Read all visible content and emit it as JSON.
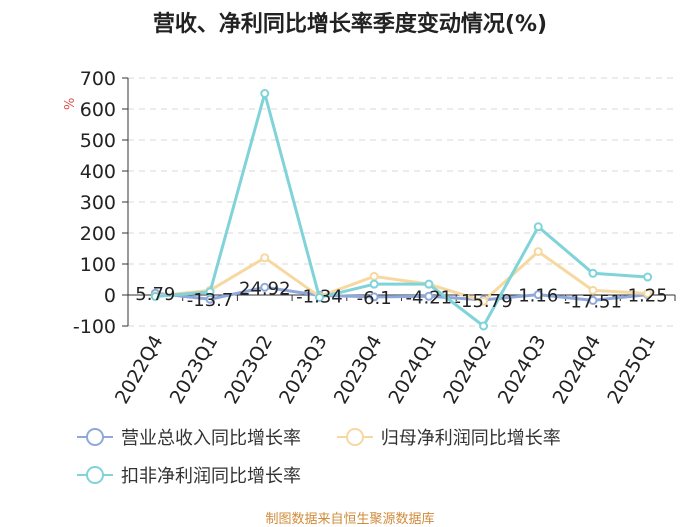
{
  "title": "营收、净利同比增长率季度变动情况(%)",
  "unit": "%",
  "source": "制图数据来自恒生聚源数据库",
  "chart_data": {
    "type": "line",
    "categories": [
      "2022Q4",
      "2023Q1",
      "2023Q2",
      "2023Q3",
      "2023Q4",
      "2024Q1",
      "2024Q2",
      "2024Q3",
      "2024Q4",
      "2025Q1"
    ],
    "ylim": [
      -100,
      700
    ],
    "yticks": [
      -100,
      0,
      100,
      200,
      300,
      400,
      500,
      600,
      700
    ],
    "grid": true,
    "legend_position": "bottom",
    "series": [
      {
        "name": "营业总收入同比增长率",
        "color": "#8fa8dc",
        "values": [
          5.79,
          -13.7,
          24.92,
          -1.34,
          -6.1,
          -4.21,
          -15.79,
          1.16,
          -17.51,
          1.25
        ],
        "labels": [
          "5.79",
          "-13.7",
          "24.92",
          "-1.34",
          "-6.1",
          "-4.21",
          "-15.79",
          "1.16",
          "-17.51",
          "1.25"
        ]
      },
      {
        "name": "归母净利润同比增长率",
        "color": "#f6d8a0",
        "values": [
          -3,
          15,
          120,
          -5,
          60,
          35,
          -20,
          140,
          15,
          5
        ]
      },
      {
        "name": "扣非净利润同比增长率",
        "color": "#7fd3d9",
        "values": [
          -5,
          10,
          650,
          -8,
          35,
          35,
          -100,
          220,
          70,
          58
        ]
      }
    ]
  }
}
